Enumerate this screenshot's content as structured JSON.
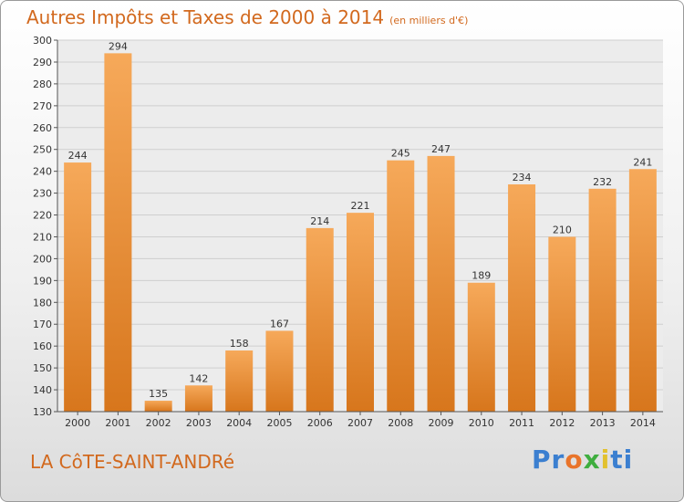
{
  "title": "Autres Impôts et Taxes de 2000 à 2014",
  "subtitle": "(en milliers d'€)",
  "commune": "LA CôTE-SAINT-ANDRé",
  "logo": {
    "text": "Proxiti",
    "letters": [
      "P",
      "r",
      "o",
      "x",
      "i",
      "t",
      "i"
    ],
    "colors": [
      "#3b7fd0",
      "#3b7fd0",
      "#e9742a",
      "#3fae3f",
      "#e2c12e",
      "#3b7fd0",
      "#3b7fd0"
    ]
  },
  "colors": {
    "bar_light": "#f6a95a",
    "bar_dark": "#d7761c",
    "accent": "#d2691e"
  },
  "chart_data": {
    "type": "bar",
    "title": "Autres Impôts et Taxes de 2000 à 2014",
    "subtitle": "(en milliers d'€)",
    "categories": [
      "2000",
      "2001",
      "2002",
      "2003",
      "2004",
      "2005",
      "2006",
      "2007",
      "2008",
      "2009",
      "2010",
      "2011",
      "2012",
      "2013",
      "2014"
    ],
    "values": [
      244,
      294,
      135,
      142,
      158,
      167,
      214,
      221,
      245,
      247,
      189,
      234,
      210,
      232,
      241
    ],
    "ylim": [
      130,
      300
    ],
    "yticks": [
      130,
      140,
      150,
      160,
      170,
      180,
      190,
      200,
      210,
      220,
      230,
      240,
      250,
      260,
      270,
      280,
      290,
      300
    ],
    "grid": true,
    "xlabel": "",
    "ylabel": ""
  }
}
